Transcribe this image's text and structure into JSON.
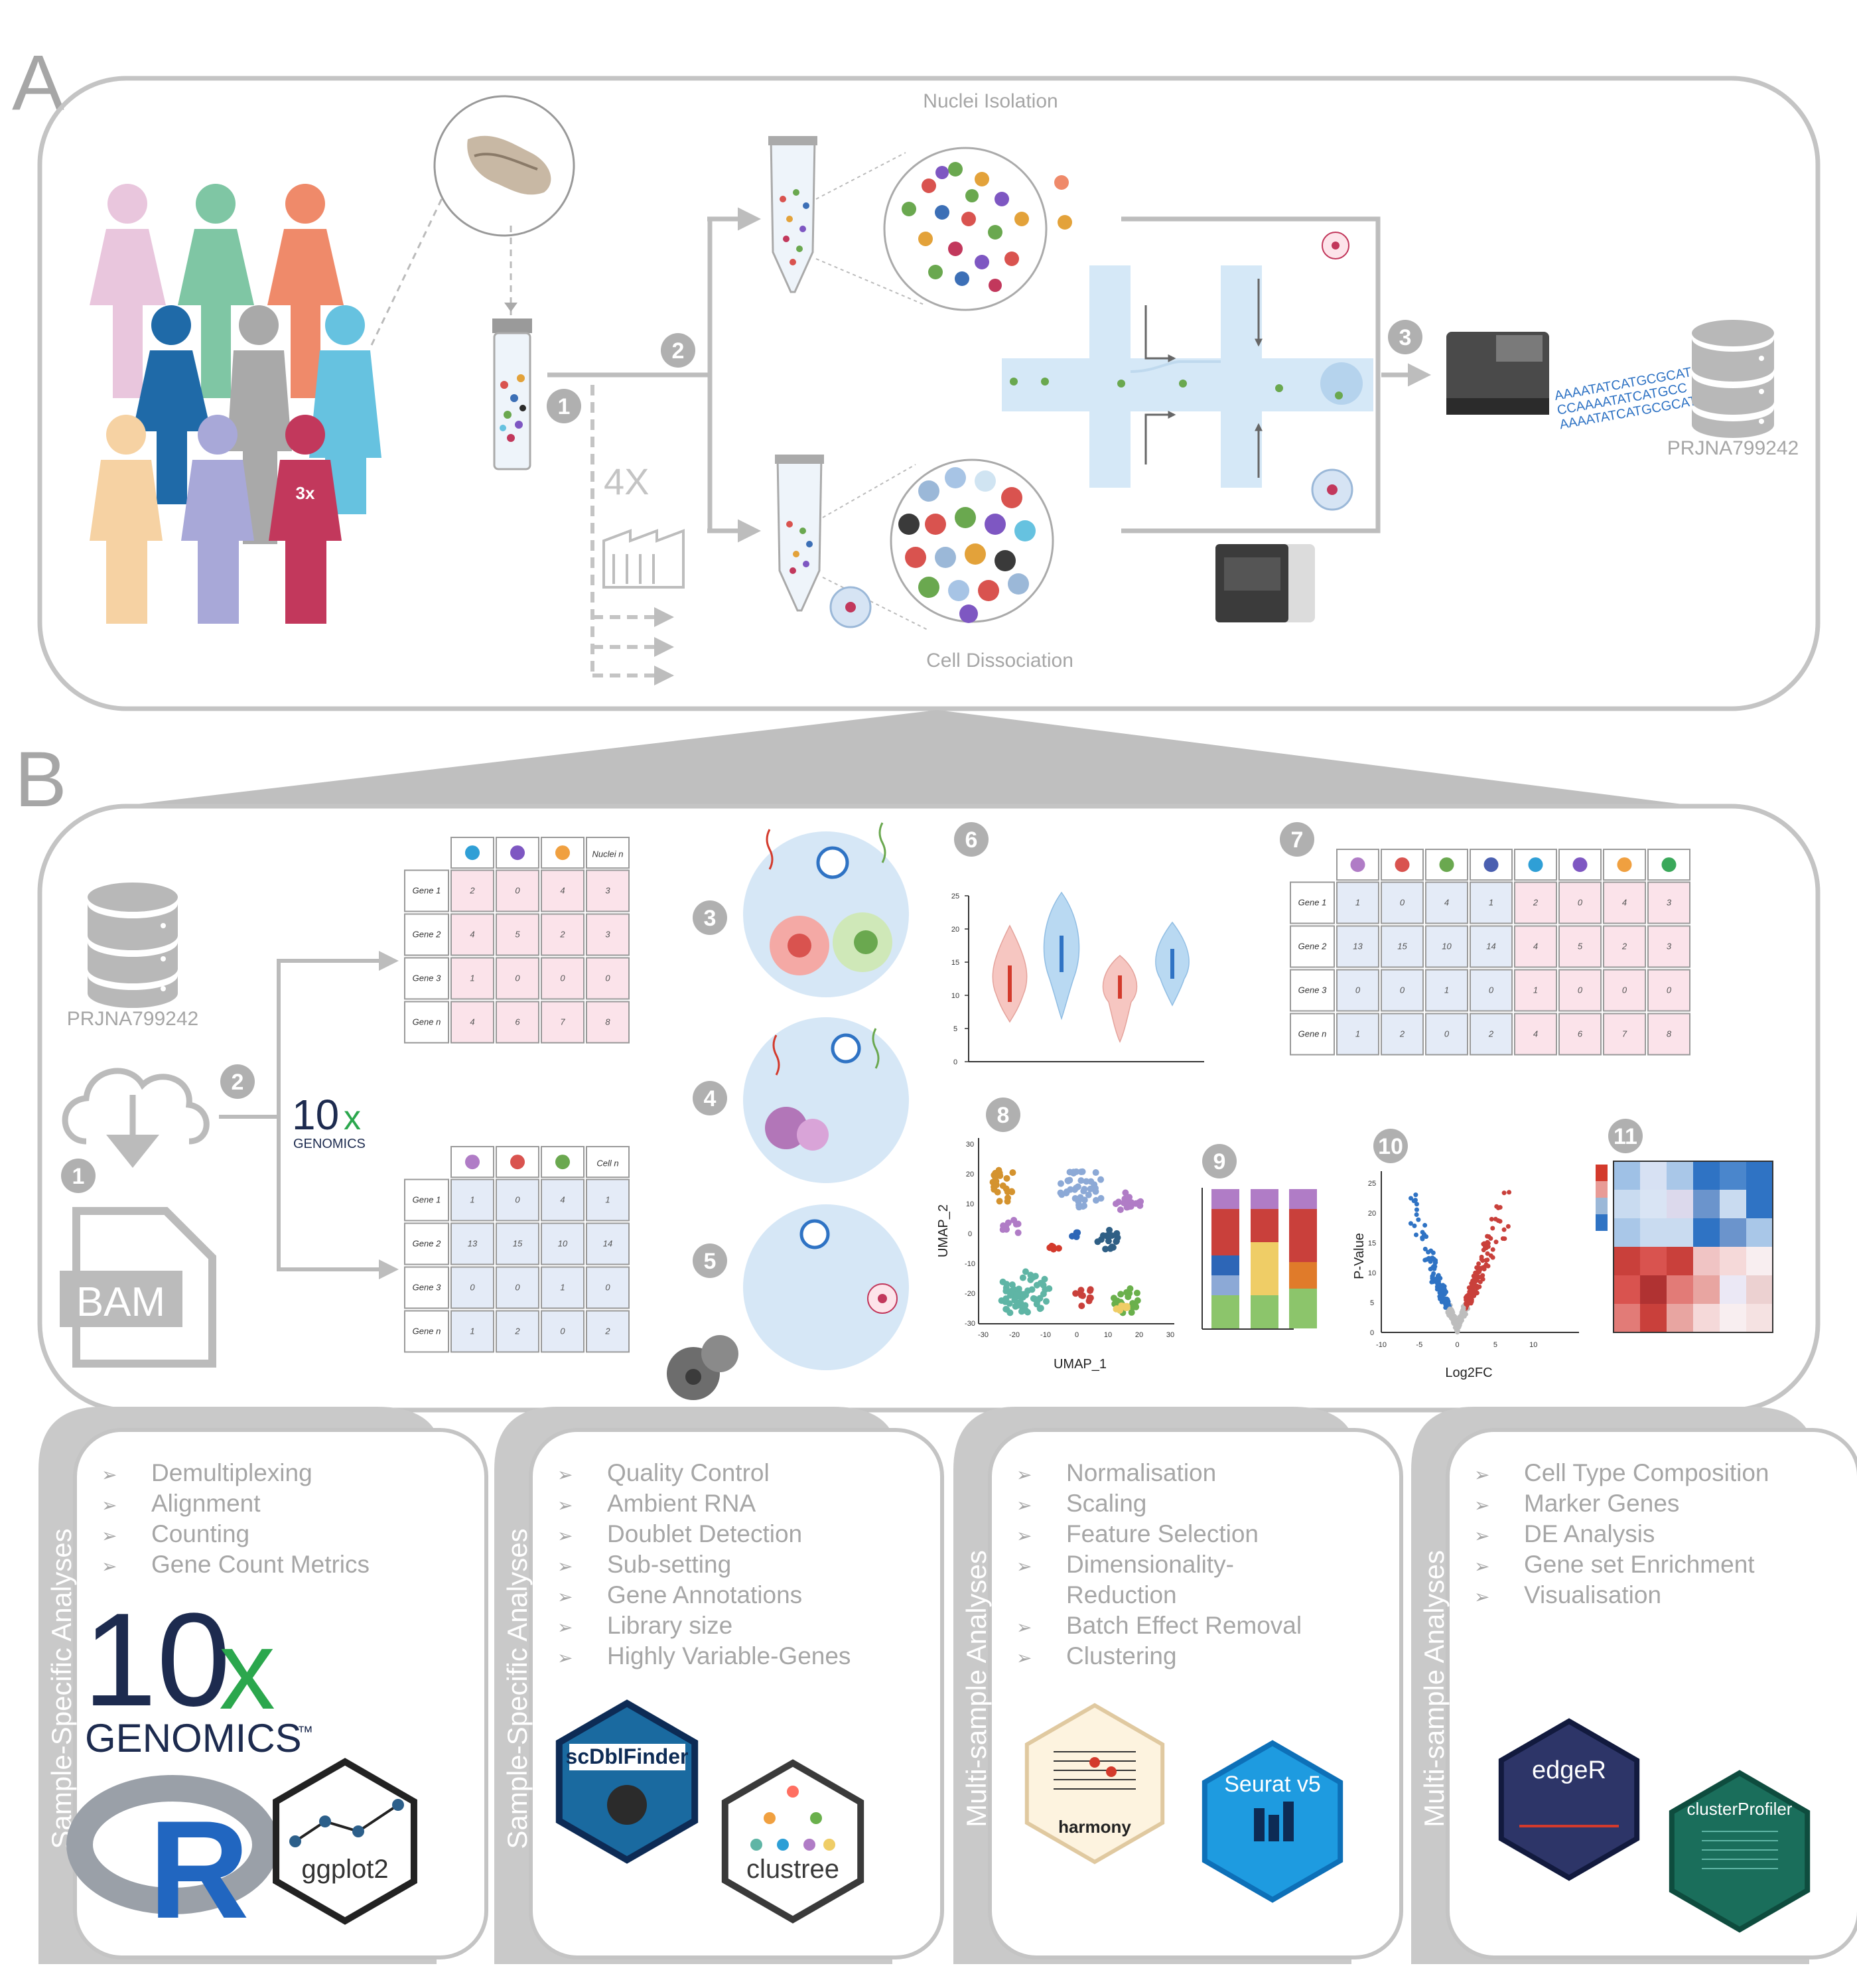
{
  "panel_a": {
    "letter": "A",
    "nuclei_label": "Nuclei Isolation",
    "cell_label": "Cell Dissociation",
    "multiplier": "4X",
    "figure_badge": "3x",
    "accession": "PRJNA799242",
    "sequence_text": [
      "AAAATATCATGCGCAT",
      "CCAAAATATCATGCC",
      "AAAATATCATGCGCAT"
    ],
    "steps": [
      "1",
      "2",
      "3"
    ]
  },
  "panel_b": {
    "letter": "B",
    "accession": "PRJNA799242",
    "bam_label": "BAM",
    "tenx_logo": {
      "number": "10",
      "x": "x",
      "word": "GENOMICS"
    },
    "steps": [
      "1",
      "2",
      "3",
      "4",
      "5",
      "6",
      "7",
      "8",
      "9",
      "10",
      "11"
    ],
    "nuclei_table": {
      "header_last": "Nuclei n",
      "rows": [
        {
          "label": "Gene 1",
          "values": [
            "2",
            "0",
            "4",
            "3"
          ]
        },
        {
          "label": "Gene 2",
          "values": [
            "4",
            "5",
            "2",
            "3"
          ]
        },
        {
          "label": "Gene 3",
          "values": [
            "1",
            "0",
            "0",
            "0"
          ]
        },
        {
          "label": "Gene n",
          "values": [
            "4",
            "6",
            "7",
            "8"
          ]
        }
      ]
    },
    "cell_table": {
      "header_last": "Cell n",
      "rows": [
        {
          "label": "Gene 1",
          "values": [
            "1",
            "0",
            "4",
            "1"
          ]
        },
        {
          "label": "Gene 2",
          "values": [
            "13",
            "15",
            "10",
            "14"
          ]
        },
        {
          "label": "Gene 3",
          "values": [
            "0",
            "0",
            "1",
            "0"
          ]
        },
        {
          "label": "Gene n",
          "values": [
            "1",
            "2",
            "0",
            "2"
          ]
        }
      ]
    },
    "merged_table": {
      "rows": [
        {
          "label": "Gene 1",
          "values": [
            "1",
            "0",
            "4",
            "1",
            "2",
            "0",
            "4",
            "3"
          ]
        },
        {
          "label": "Gene 2",
          "values": [
            "13",
            "15",
            "10",
            "14",
            "4",
            "5",
            "2",
            "3"
          ]
        },
        {
          "label": "Gene 3",
          "values": [
            "0",
            "0",
            "1",
            "0",
            "1",
            "0",
            "0",
            "0"
          ]
        },
        {
          "label": "Gene n",
          "values": [
            "1",
            "2",
            "0",
            "2",
            "4",
            "6",
            "7",
            "8"
          ]
        }
      ]
    },
    "umap": {
      "xlabel": "UMAP_1",
      "ylabel": "UMAP_2",
      "xticks": [
        "-30",
        "-20",
        "-10",
        "0",
        "10",
        "20",
        "30"
      ],
      "yticks": [
        "30",
        "20",
        "10",
        "0",
        "-10",
        "-20",
        "-30"
      ]
    },
    "volcano": {
      "xlabel": "Log2FC",
      "ylabel": "P-Value",
      "xticks": [
        "-10",
        "-5",
        "0",
        "5",
        "10"
      ],
      "yticks": [
        "25",
        "20",
        "15",
        "10",
        "5",
        "0"
      ]
    },
    "violin": {
      "yticks": [
        "25",
        "20",
        "15",
        "10",
        "5",
        "0"
      ]
    }
  },
  "analysis_boxes": [
    {
      "title": "Sample-Specific Analyses",
      "items": [
        "Demultiplexing",
        "Alignment",
        "Counting",
        "Gene Count Metrics"
      ],
      "logos": {
        "tenx_number": "10",
        "tenx_x": "x",
        "tenx_word": "GENOMICS",
        "tenx_tm": "™",
        "r": "R",
        "hex": "ggplot2"
      }
    },
    {
      "title": "Sample-Specific Analyses",
      "items": [
        "Quality  Control",
        "Ambient RNA",
        "Doublet Detection",
        "Sub-setting",
        "Gene Annotations",
        "Library size",
        "Highly Variable-Genes"
      ],
      "logos": {
        "hex1": "scDblFinder",
        "hex2": "clustree"
      }
    },
    {
      "title": "Multi-sample Analyses",
      "items": [
        "Normalisation",
        "Scaling",
        "Feature Selection",
        "Dimensionality-\nReduction",
        "Batch Effect  Removal",
        "Clustering"
      ],
      "logos": {
        "hex1": "harmony",
        "hex2": "Seurat v5"
      }
    },
    {
      "title": "Multi-sample Analyses",
      "items": [
        "Cell Type Composition",
        "Marker Genes",
        "DE Analysis",
        "Gene set Enrichment",
        "Visualisation"
      ],
      "logos": {
        "hex1": "edgeR",
        "hex2": "clusterProfiler"
      }
    }
  ],
  "colors": {
    "frame_gray": "#bdbdbd",
    "text_gray": "#a6a6a6",
    "step_circle": "#a6a6a6",
    "pink_cell": "#fbe3ea",
    "blue_cell": "#e4ebf7",
    "accent_red": "#d33a2c",
    "accent_blue": "#2f73c4"
  }
}
